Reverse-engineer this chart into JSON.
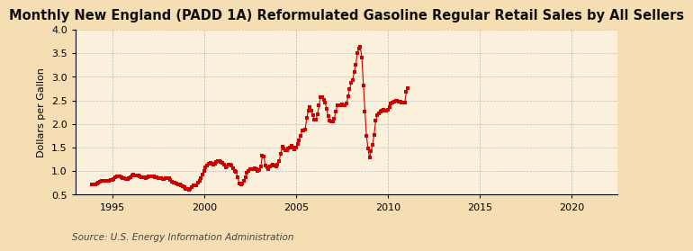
{
  "title": "Monthly New England (PADD 1A) Reformulated Gasoline Regular Retail Sales by All Sellers",
  "ylabel": "Dollars per Gallon",
  "source": "Source: U.S. Energy Information Administration",
  "xlim": [
    1993.0,
    2022.5
  ],
  "ylim": [
    0.5,
    4.0
  ],
  "yticks": [
    0.5,
    1.0,
    1.5,
    2.0,
    2.5,
    3.0,
    3.5,
    4.0
  ],
  "xticks": [
    1995,
    2000,
    2005,
    2010,
    2015,
    2020
  ],
  "outer_bg": "#f5deb3",
  "plot_bg": "#faf0dc",
  "marker_color": "#cc0000",
  "grid_color": "#bbbbbb",
  "title_fontsize": 10.5,
  "tick_fontsize": 8,
  "ylabel_fontsize": 8,
  "source_fontsize": 7.5,
  "data": [
    [
      1993.917,
      0.718
    ],
    [
      1994.0,
      0.714
    ],
    [
      1994.083,
      0.728
    ],
    [
      1994.167,
      0.746
    ],
    [
      1994.25,
      0.758
    ],
    [
      1994.333,
      0.778
    ],
    [
      1994.417,
      0.796
    ],
    [
      1994.5,
      0.8
    ],
    [
      1994.583,
      0.799
    ],
    [
      1994.667,
      0.791
    ],
    [
      1994.75,
      0.787
    ],
    [
      1994.833,
      0.792
    ],
    [
      1994.917,
      0.806
    ],
    [
      1995.0,
      0.821
    ],
    [
      1995.083,
      0.841
    ],
    [
      1995.167,
      0.87
    ],
    [
      1995.25,
      0.886
    ],
    [
      1995.333,
      0.884
    ],
    [
      1995.417,
      0.882
    ],
    [
      1995.5,
      0.867
    ],
    [
      1995.583,
      0.855
    ],
    [
      1995.667,
      0.848
    ],
    [
      1995.75,
      0.838
    ],
    [
      1995.833,
      0.836
    ],
    [
      1995.917,
      0.849
    ],
    [
      1996.0,
      0.878
    ],
    [
      1996.083,
      0.903
    ],
    [
      1996.167,
      0.92
    ],
    [
      1996.25,
      0.914
    ],
    [
      1996.333,
      0.91
    ],
    [
      1996.417,
      0.905
    ],
    [
      1996.5,
      0.889
    ],
    [
      1996.583,
      0.877
    ],
    [
      1996.667,
      0.869
    ],
    [
      1996.75,
      0.863
    ],
    [
      1996.833,
      0.86
    ],
    [
      1996.917,
      0.872
    ],
    [
      1997.0,
      0.884
    ],
    [
      1997.083,
      0.888
    ],
    [
      1997.167,
      0.893
    ],
    [
      1997.25,
      0.886
    ],
    [
      1997.333,
      0.875
    ],
    [
      1997.417,
      0.868
    ],
    [
      1997.5,
      0.859
    ],
    [
      1997.583,
      0.85
    ],
    [
      1997.667,
      0.847
    ],
    [
      1997.75,
      0.841
    ],
    [
      1997.833,
      0.84
    ],
    [
      1997.917,
      0.843
    ],
    [
      1998.0,
      0.848
    ],
    [
      1998.083,
      0.845
    ],
    [
      1998.167,
      0.818
    ],
    [
      1998.25,
      0.782
    ],
    [
      1998.333,
      0.762
    ],
    [
      1998.417,
      0.751
    ],
    [
      1998.5,
      0.738
    ],
    [
      1998.583,
      0.726
    ],
    [
      1998.667,
      0.714
    ],
    [
      1998.75,
      0.697
    ],
    [
      1998.833,
      0.681
    ],
    [
      1998.917,
      0.659
    ],
    [
      1999.0,
      0.63
    ],
    [
      1999.083,
      0.618
    ],
    [
      1999.167,
      0.606
    ],
    [
      1999.25,
      0.621
    ],
    [
      1999.333,
      0.67
    ],
    [
      1999.417,
      0.7
    ],
    [
      1999.5,
      0.693
    ],
    [
      1999.583,
      0.698
    ],
    [
      1999.667,
      0.748
    ],
    [
      1999.75,
      0.793
    ],
    [
      1999.833,
      0.854
    ],
    [
      1999.917,
      0.922
    ],
    [
      2000.0,
      1.008
    ],
    [
      2000.083,
      1.084
    ],
    [
      2000.167,
      1.121
    ],
    [
      2000.25,
      1.148
    ],
    [
      2000.333,
      1.182
    ],
    [
      2000.417,
      1.164
    ],
    [
      2000.5,
      1.133
    ],
    [
      2000.583,
      1.151
    ],
    [
      2000.667,
      1.195
    ],
    [
      2000.75,
      1.221
    ],
    [
      2000.833,
      1.205
    ],
    [
      2000.917,
      1.198
    ],
    [
      2001.0,
      1.17
    ],
    [
      2001.083,
      1.142
    ],
    [
      2001.167,
      1.081
    ],
    [
      2001.25,
      1.099
    ],
    [
      2001.333,
      1.141
    ],
    [
      2001.417,
      1.139
    ],
    [
      2001.5,
      1.126
    ],
    [
      2001.583,
      1.069
    ],
    [
      2001.667,
      1.005
    ],
    [
      2001.75,
      0.981
    ],
    [
      2001.833,
      0.865
    ],
    [
      2001.917,
      0.741
    ],
    [
      2002.0,
      0.71
    ],
    [
      2002.083,
      0.745
    ],
    [
      2002.167,
      0.802
    ],
    [
      2002.25,
      0.862
    ],
    [
      2002.333,
      0.972
    ],
    [
      2002.417,
      1.011
    ],
    [
      2002.5,
      1.034
    ],
    [
      2002.583,
      1.038
    ],
    [
      2002.667,
      1.05
    ],
    [
      2002.75,
      1.062
    ],
    [
      2002.833,
      1.04
    ],
    [
      2002.917,
      1.014
    ],
    [
      2003.0,
      1.027
    ],
    [
      2003.083,
      1.1
    ],
    [
      2003.167,
      1.32
    ],
    [
      2003.25,
      1.316
    ],
    [
      2003.333,
      1.116
    ],
    [
      2003.417,
      1.083
    ],
    [
      2003.5,
      1.052
    ],
    [
      2003.583,
      1.094
    ],
    [
      2003.667,
      1.117
    ],
    [
      2003.75,
      1.13
    ],
    [
      2003.833,
      1.121
    ],
    [
      2003.917,
      1.108
    ],
    [
      2004.0,
      1.14
    ],
    [
      2004.083,
      1.206
    ],
    [
      2004.167,
      1.367
    ],
    [
      2004.25,
      1.513
    ],
    [
      2004.333,
      1.476
    ],
    [
      2004.417,
      1.441
    ],
    [
      2004.5,
      1.442
    ],
    [
      2004.583,
      1.487
    ],
    [
      2004.667,
      1.506
    ],
    [
      2004.75,
      1.531
    ],
    [
      2004.833,
      1.508
    ],
    [
      2004.917,
      1.458
    ],
    [
      2005.0,
      1.508
    ],
    [
      2005.083,
      1.57
    ],
    [
      2005.167,
      1.659
    ],
    [
      2005.25,
      1.752
    ],
    [
      2005.333,
      1.862
    ],
    [
      2005.417,
      1.869
    ],
    [
      2005.5,
      1.889
    ],
    [
      2005.583,
      2.125
    ],
    [
      2005.667,
      2.276
    ],
    [
      2005.75,
      2.349
    ],
    [
      2005.833,
      2.285
    ],
    [
      2005.917,
      2.186
    ],
    [
      2006.0,
      2.098
    ],
    [
      2006.083,
      2.095
    ],
    [
      2006.167,
      2.204
    ],
    [
      2006.25,
      2.388
    ],
    [
      2006.333,
      2.562
    ],
    [
      2006.417,
      2.576
    ],
    [
      2006.5,
      2.518
    ],
    [
      2006.583,
      2.456
    ],
    [
      2006.667,
      2.313
    ],
    [
      2006.75,
      2.161
    ],
    [
      2006.833,
      2.071
    ],
    [
      2006.917,
      2.045
    ],
    [
      2007.0,
      2.044
    ],
    [
      2007.083,
      2.107
    ],
    [
      2007.167,
      2.262
    ],
    [
      2007.25,
      2.392
    ],
    [
      2007.333,
      2.401
    ],
    [
      2007.417,
      2.389
    ],
    [
      2007.5,
      2.407
    ],
    [
      2007.583,
      2.393
    ],
    [
      2007.667,
      2.393
    ],
    [
      2007.75,
      2.428
    ],
    [
      2007.833,
      2.588
    ],
    [
      2007.917,
      2.743
    ],
    [
      2008.0,
      2.864
    ],
    [
      2008.083,
      2.926
    ],
    [
      2008.167,
      3.105
    ],
    [
      2008.25,
      3.247
    ],
    [
      2008.333,
      3.501
    ],
    [
      2008.417,
      3.594
    ],
    [
      2008.5,
      3.626
    ],
    [
      2008.583,
      3.401
    ],
    [
      2008.667,
      2.808
    ],
    [
      2008.75,
      2.268
    ],
    [
      2008.833,
      1.746
    ],
    [
      2008.917,
      1.478
    ],
    [
      2009.0,
      1.283
    ],
    [
      2009.083,
      1.419
    ],
    [
      2009.167,
      1.566
    ],
    [
      2009.25,
      1.772
    ],
    [
      2009.333,
      2.067
    ],
    [
      2009.417,
      2.187
    ],
    [
      2009.5,
      2.231
    ],
    [
      2009.583,
      2.27
    ],
    [
      2009.667,
      2.285
    ],
    [
      2009.75,
      2.303
    ],
    [
      2009.833,
      2.29
    ],
    [
      2009.917,
      2.281
    ],
    [
      2010.0,
      2.301
    ],
    [
      2010.083,
      2.349
    ],
    [
      2010.167,
      2.43
    ],
    [
      2010.25,
      2.461
    ],
    [
      2010.333,
      2.478
    ],
    [
      2010.417,
      2.488
    ],
    [
      2010.5,
      2.486
    ],
    [
      2010.583,
      2.481
    ],
    [
      2010.667,
      2.465
    ],
    [
      2010.75,
      2.45
    ],
    [
      2010.833,
      2.449
    ],
    [
      2010.917,
      2.451
    ],
    [
      2011.0,
      2.687
    ],
    [
      2011.083,
      2.762
    ]
  ]
}
